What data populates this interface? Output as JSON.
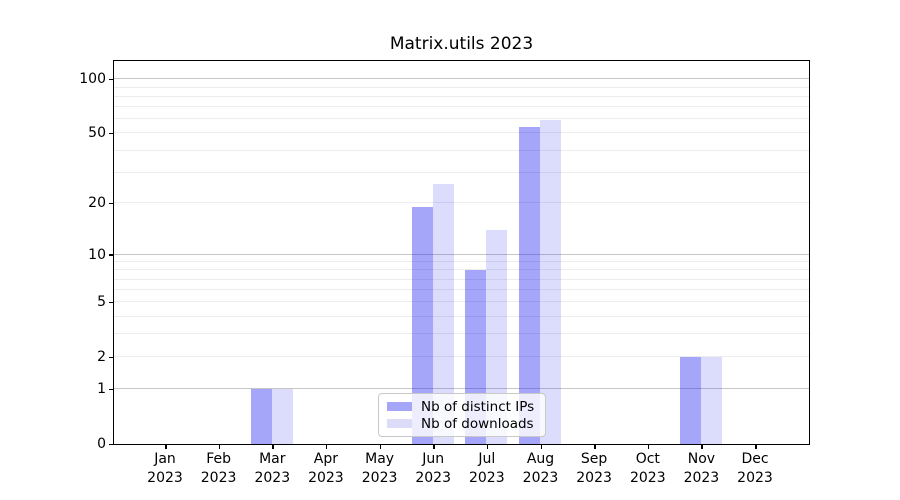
{
  "chart_data": {
    "type": "bar",
    "title": "Matrix.utils 2023",
    "xlabel": "",
    "ylabel": "",
    "categories": [
      "Jan 2023",
      "Feb 2023",
      "Mar 2023",
      "Apr 2023",
      "May 2023",
      "Jun 2023",
      "Jul 2023",
      "Aug 2023",
      "Sep 2023",
      "Oct 2023",
      "Nov 2023",
      "Dec 2023"
    ],
    "series": [
      {
        "name": "Nb of distinct IPs",
        "values": [
          0,
          0,
          1,
          0,
          0,
          19,
          8,
          54,
          0,
          0,
          2,
          0
        ],
        "color": "rgba(30,30,240,0.40)",
        "legend_color": "#a6a6f8"
      },
      {
        "name": "Nb of downloads",
        "values": [
          0,
          0,
          1,
          0,
          0,
          26,
          14,
          59,
          0,
          0,
          2,
          0
        ],
        "color": "rgba(30,30,240,0.155)",
        "legend_color": "#dcdcf9"
      }
    ],
    "yscale": "log10(value+1)",
    "ylim": [
      0,
      127
    ],
    "y_tick_values": [
      0,
      1,
      2,
      5,
      10,
      20,
      50,
      100
    ],
    "y_major_gridlines": [
      1,
      10,
      100
    ],
    "y_minor_gridlines": [
      2,
      3,
      4,
      5,
      6,
      7,
      8,
      9,
      20,
      30,
      40,
      50,
      60,
      70,
      80,
      90
    ],
    "grid": true,
    "legend_position": "lower center",
    "colors": {
      "major_grid": "#c6c6c6",
      "minor_grid": "#ececec",
      "axis": "#000000",
      "background": "#ffffff"
    }
  }
}
